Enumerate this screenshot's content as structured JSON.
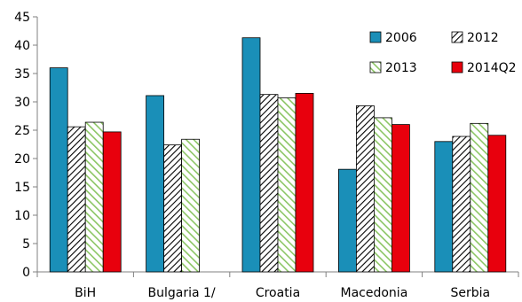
{
  "chart_data": {
    "type": "bar",
    "categories": [
      "BiH",
      "Bulgaria 1/",
      "Croatia",
      "Macedonia",
      "Serbia"
    ],
    "series": [
      {
        "name": "2006",
        "values": [
          36.0,
          31.1,
          41.3,
          18.1,
          23.0
        ],
        "color": "#1a8fb8",
        "pattern": "solid"
      },
      {
        "name": "2012",
        "values": [
          25.6,
          22.4,
          31.3,
          29.3,
          23.9
        ],
        "color": "#ffffff",
        "pattern": "diag-black"
      },
      {
        "name": "2013",
        "values": [
          26.4,
          23.4,
          30.7,
          27.2,
          26.2
        ],
        "color": "#8cc665",
        "pattern": "diag-green"
      },
      {
        "name": "2014Q2",
        "values": [
          24.7,
          null,
          31.5,
          26.0,
          24.1
        ],
        "color": "#e8000d",
        "pattern": "solid"
      }
    ],
    "ylim": [
      0,
      45
    ],
    "yticks": [
      0,
      5,
      10,
      15,
      20,
      25,
      30,
      35,
      40,
      45
    ],
    "legend_position": "top-right",
    "grid": false
  }
}
